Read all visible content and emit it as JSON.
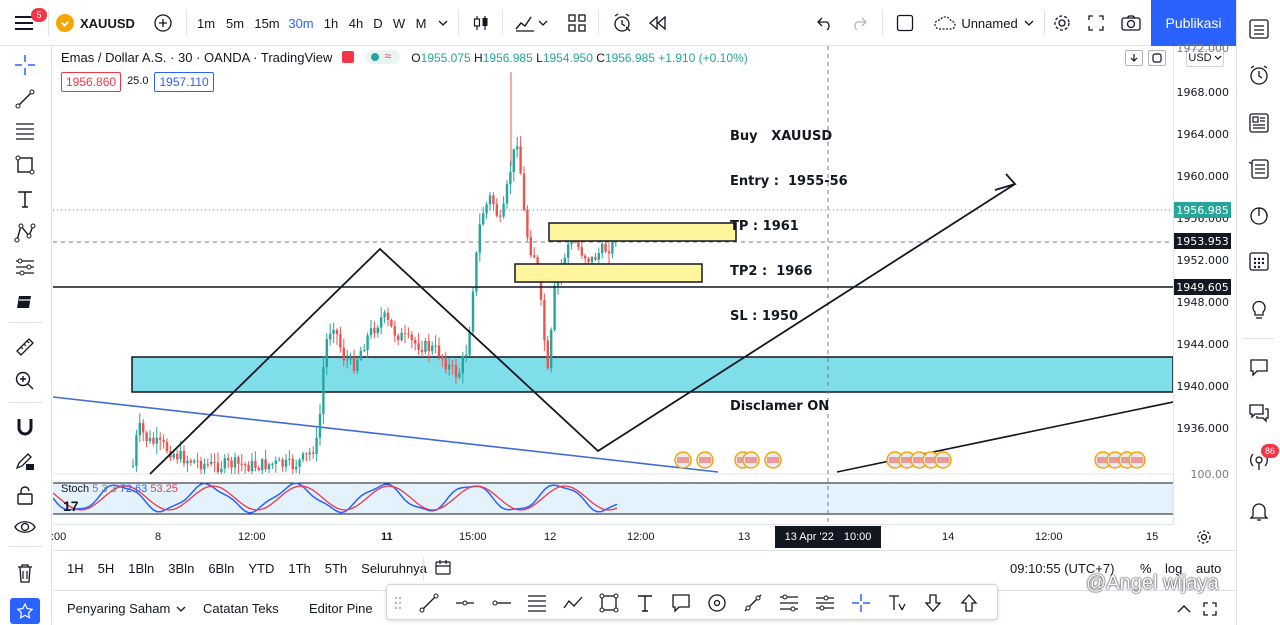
{
  "topbar": {
    "notification_count": "5",
    "symbol": "XAUUSD",
    "intervals": [
      "1m",
      "5m",
      "15m",
      "30m",
      "1h",
      "4h",
      "D",
      "W",
      "M"
    ],
    "active_interval": "30m",
    "layout_name": "Unnamed",
    "publish_label": "Publikasi"
  },
  "legend": {
    "title": "Emas / Dollar A.S. · 30 · OANDA · TradingView",
    "open_label": "O",
    "open": "1955.075",
    "high_label": "H",
    "high": "1956.985",
    "low_label": "L",
    "low": "1954.950",
    "close_label": "C",
    "close": "1956.985",
    "change": "+1.910 (+0.10%)",
    "bid": "1956.860",
    "spread": "25.0",
    "ask": "1957.110"
  },
  "annotation": {
    "lines": [
      "Buy   XAUUSD",
      "Entry :  1955-56",
      "TP : 1961",
      "TP2 :  1966",
      "SL : 1950",
      "",
      "Disclamer ON"
    ]
  },
  "price_axis": {
    "currency": "USD",
    "top_partial": "1972.000",
    "labels": [
      "1968.000",
      "1964.000",
      "1960.000",
      "1956.000",
      "1952.000",
      "1948.000",
      "1944.000",
      "1940.000",
      "1936.000"
    ],
    "current_price": "1956.985",
    "crosshair_price": "1953.953",
    "line_price": "1949.605",
    "stoch_partial": "100.00"
  },
  "stoch": {
    "label": "Stoch",
    "params": "5 3 3",
    "k": "72.63",
    "d": "53.25"
  },
  "time_axis": {
    "labels": [
      ":00",
      "8",
      "12:00",
      "11",
      "15:00",
      "12",
      "12:00",
      "13",
      "14",
      "12:00",
      "15"
    ],
    "crosshair_date": "13 Apr '22",
    "crosshair_time": "10:00"
  },
  "bottombar": {
    "ranges": [
      "1H",
      "5H",
      "1Bln",
      "3Bln",
      "6Bln",
      "YTD",
      "1Th",
      "5Th",
      "Seluruhnya"
    ],
    "clock": "09:10:55 (UTC+7)",
    "percent": "%",
    "log": "log",
    "auto": "auto"
  },
  "panels": {
    "tabs": [
      "Penyaring Saham",
      "Catatan Teks",
      "Editor Pine"
    ]
  },
  "rightbar": {
    "alert_badge": "86"
  },
  "watermark": "@Angel wijaya",
  "colors": {
    "accent": "#2962ff",
    "up": "#26a69a",
    "down": "#ef5350",
    "zone_cyan": "#80deea",
    "zone_yellow": "#fff59d"
  }
}
